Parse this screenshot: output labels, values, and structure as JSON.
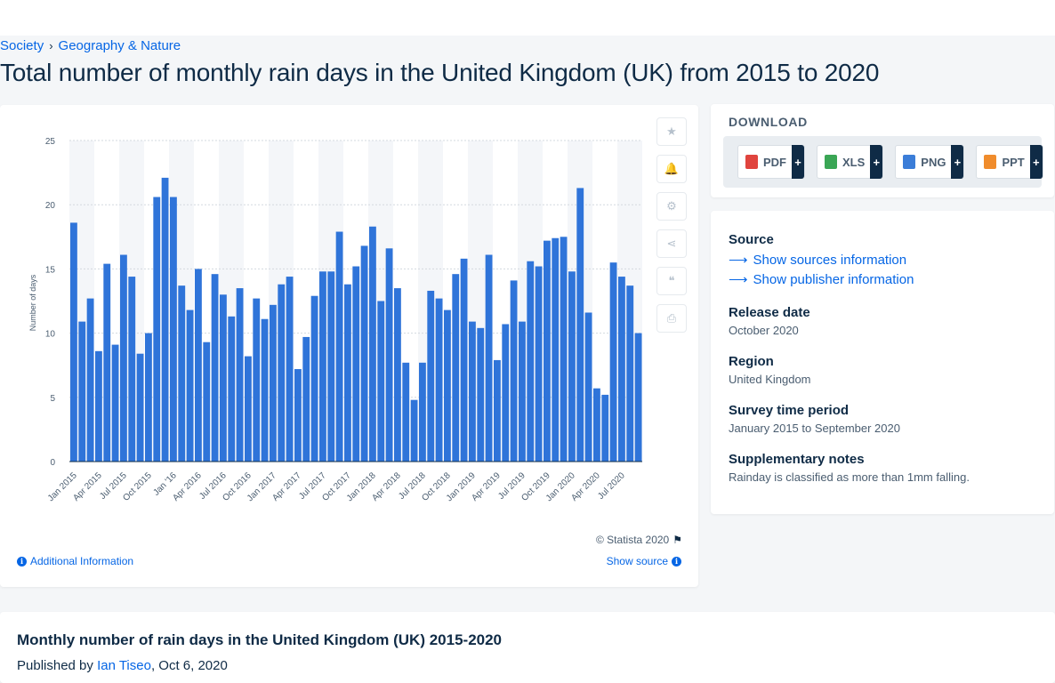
{
  "breadcrumb": {
    "item1": "Society",
    "separator": "›",
    "item2": "Geography & Nature"
  },
  "page_title": "Total number of monthly rain days in the United Kingdom (UK) from 2015 to 2020",
  "chart": {
    "copyright": "© Statista 2020",
    "additional_info": "Additional Information",
    "show_source": "Show source"
  },
  "chart_data": {
    "type": "bar",
    "title": "",
    "xlabel": "",
    "ylabel": "Number of days",
    "ylim": [
      0,
      25
    ],
    "yticks": [
      0,
      5,
      10,
      15,
      20,
      25
    ],
    "grid": true,
    "bar_color": "#2f74d9",
    "band_color": "#f4f6f9",
    "xtick_labels": [
      "Jan 2015",
      "Apr 2015",
      "Jul 2015",
      "Oct 2015",
      "Jan '16",
      "Apr 2016",
      "Jul 2016",
      "Oct 2016",
      "Jan 2017",
      "Apr 2017",
      "Jul 2017",
      "Oct 2017",
      "Jan 2018",
      "Apr 2018",
      "Jul 2018",
      "Oct 2018",
      "Jan 2019",
      "Apr 2019",
      "Jul 2019",
      "Oct 2019",
      "Jan 2020",
      "Apr 2020",
      "Jul 2020"
    ],
    "categories": [
      "Jan 2015",
      "Feb 2015",
      "Mar 2015",
      "Apr 2015",
      "May 2015",
      "Jun 2015",
      "Jul 2015",
      "Aug 2015",
      "Sep 2015",
      "Oct 2015",
      "Nov 2015",
      "Dec 2015",
      "Jan 2016",
      "Feb 2016",
      "Mar 2016",
      "Apr 2016",
      "May 2016",
      "Jun 2016",
      "Jul 2016",
      "Aug 2016",
      "Sep 2016",
      "Oct 2016",
      "Nov 2016",
      "Dec 2016",
      "Jan 2017",
      "Feb 2017",
      "Mar 2017",
      "Apr 2017",
      "May 2017",
      "Jun 2017",
      "Jul 2017",
      "Aug 2017",
      "Sep 2017",
      "Oct 2017",
      "Nov 2017",
      "Dec 2017",
      "Jan 2018",
      "Feb 2018",
      "Mar 2018",
      "Apr 2018",
      "May 2018",
      "Jun 2018",
      "Jul 2018",
      "Aug 2018",
      "Sep 2018",
      "Oct 2018",
      "Nov 2018",
      "Dec 2018",
      "Jan 2019",
      "Feb 2019",
      "Mar 2019",
      "Apr 2019",
      "May 2019",
      "Jun 2019",
      "Jul 2019",
      "Aug 2019",
      "Sep 2019",
      "Oct 2019",
      "Nov 2019",
      "Dec 2019",
      "Jan 2020",
      "Feb 2020",
      "Mar 2020",
      "Apr 2020",
      "May 2020",
      "Jun 2020",
      "Jul 2020",
      "Aug 2020",
      "Sep 2020"
    ],
    "values": [
      18.6,
      10.9,
      12.7,
      8.6,
      15.4,
      9.1,
      16.1,
      14.4,
      8.4,
      10.0,
      20.6,
      22.1,
      20.6,
      13.7,
      11.8,
      15.0,
      9.3,
      14.6,
      13.0,
      11.3,
      13.5,
      8.2,
      12.7,
      11.1,
      12.2,
      13.8,
      14.4,
      7.2,
      9.7,
      12.9,
      14.8,
      14.8,
      17.9,
      13.8,
      15.2,
      16.8,
      18.3,
      12.5,
      16.6,
      13.5,
      7.7,
      4.8,
      7.7,
      13.3,
      12.7,
      11.8,
      14.6,
      15.8,
      10.9,
      10.4,
      16.1,
      7.9,
      10.7,
      14.1,
      10.9,
      15.6,
      15.2,
      17.2,
      17.4,
      17.5,
      14.8,
      21.3,
      11.6,
      5.7,
      5.2,
      15.5,
      14.4,
      13.7,
      10.0
    ]
  },
  "side_tools": [
    {
      "name": "favorite-icon",
      "glyph": "★"
    },
    {
      "name": "bell-icon",
      "glyph": "🔔"
    },
    {
      "name": "settings-icon",
      "glyph": "⚙"
    },
    {
      "name": "share-icon",
      "glyph": "⋖"
    },
    {
      "name": "cite-icon",
      "glyph": "❝"
    },
    {
      "name": "print-icon",
      "glyph": "⎙"
    }
  ],
  "download": {
    "title": "DOWNLOAD",
    "buttons": [
      {
        "label": "PDF",
        "color": "#e0443e",
        "plus": "+"
      },
      {
        "label": "XLS",
        "color": "#3aa655",
        "plus": "+"
      },
      {
        "label": "PNG",
        "color": "#3b7dd8",
        "plus": "+"
      },
      {
        "label": "PPT",
        "color": "#f08c2c",
        "plus": "+"
      }
    ]
  },
  "source_panel": {
    "source_heading": "Source",
    "show_sources": "Show sources information",
    "show_publisher": "Show publisher information",
    "release_heading": "Release date",
    "release_value": "October 2020",
    "region_heading": "Region",
    "region_value": "United Kingdom",
    "survey_heading": "Survey time period",
    "survey_value": "January 2015 to September 2020",
    "notes_heading": "Supplementary notes",
    "notes_value": "Rainday is classified as more than 1mm falling."
  },
  "publication": {
    "title": "Monthly number of rain days in the United Kingdom (UK) 2015-2020",
    "published_by": "Published by",
    "author": "Ian Tiseo",
    "date": ", Oct 6, 2020"
  }
}
